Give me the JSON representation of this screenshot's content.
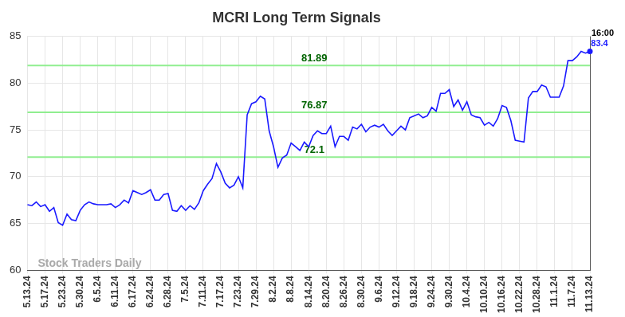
{
  "chart_data": {
    "type": "line",
    "title": "MCRI Long Term Signals",
    "categories": [
      "5.13.24",
      null,
      null,
      null,
      "5.17.24",
      null,
      null,
      null,
      "5.23.24",
      null,
      null,
      null,
      "5.30.24",
      null,
      null,
      null,
      "6.5.24",
      null,
      null,
      null,
      "6.11.24",
      null,
      null,
      null,
      "6.17.24",
      null,
      null,
      null,
      "6.24.24",
      null,
      null,
      null,
      "6.28.24",
      null,
      null,
      null,
      "7.5.24",
      null,
      null,
      null,
      "7.11.24",
      null,
      null,
      null,
      "7.17.24",
      null,
      null,
      null,
      "7.23.24",
      null,
      null,
      null,
      "7.29.24",
      null,
      null,
      null,
      "8.2.24",
      null,
      null,
      null,
      "8.8.24",
      null,
      null,
      null,
      "8.14.24",
      null,
      null,
      null,
      "8.20.24",
      null,
      null,
      null,
      "8.26.24",
      null,
      null,
      null,
      "8.30.24",
      null,
      null,
      null,
      "9.6.24",
      null,
      null,
      null,
      "9.12.24",
      null,
      null,
      null,
      "9.18.24",
      null,
      null,
      null,
      "9.24.24",
      null,
      null,
      null,
      "9.30.24",
      null,
      null,
      null,
      "10.4.24",
      null,
      null,
      null,
      "10.10.24",
      null,
      null,
      null,
      "10.16.24",
      null,
      null,
      null,
      "10.22.24",
      null,
      null,
      null,
      "10.28.24",
      null,
      null,
      null,
      "11.1.24",
      null,
      null,
      null,
      "11.7.24",
      null,
      null,
      null,
      "11.13.24"
    ],
    "values": [
      67.0,
      66.9,
      67.3,
      66.8,
      67.0,
      66.3,
      66.7,
      65.1,
      64.8,
      66.0,
      65.4,
      65.3,
      66.4,
      67.0,
      67.3,
      67.1,
      67.0,
      67.0,
      67.0,
      67.1,
      66.7,
      67.0,
      67.5,
      67.2,
      68.5,
      68.3,
      68.1,
      68.3,
      68.6,
      67.5,
      67.5,
      68.1,
      68.2,
      66.4,
      66.3,
      66.9,
      66.4,
      66.9,
      66.5,
      67.2,
      68.5,
      69.2,
      69.8,
      71.4,
      70.5,
      69.3,
      68.8,
      69.1,
      70.0,
      68.8,
      76.6,
      77.8,
      78.0,
      78.6,
      78.3,
      74.9,
      73.2,
      71.0,
      72.0,
      72.3,
      73.6,
      73.2,
      72.8,
      73.7,
      73.2,
      74.4,
      74.9,
      74.6,
      74.6,
      75.4,
      73.2,
      74.3,
      74.3,
      73.9,
      75.3,
      75.1,
      75.6,
      74.8,
      75.3,
      75.5,
      75.3,
      75.6,
      74.9,
      74.4,
      74.9,
      75.4,
      75.0,
      76.3,
      76.5,
      76.7,
      76.3,
      76.5,
      77.4,
      77.0,
      78.9,
      78.9,
      79.3,
      77.5,
      78.2,
      77.1,
      78.0,
      76.6,
      76.4,
      76.3,
      75.5,
      75.8,
      75.4,
      76.2,
      77.6,
      77.4,
      76.0,
      73.9,
      73.8,
      73.7,
      78.4,
      79.1,
      79.1,
      79.8,
      79.6,
      78.5,
      78.5,
      78.5,
      79.7,
      82.4,
      82.4,
      82.8,
      83.4,
      83.2,
      83.4
    ],
    "color": "#1a1aff",
    "ylim": [
      60,
      85
    ],
    "yticks": [
      60,
      65,
      70,
      75,
      80,
      85
    ],
    "grid": true,
    "reference_lines": [
      81.89,
      76.87,
      72.1
    ],
    "last_label": {
      "time": "16:00",
      "value": 83.4
    },
    "watermark": "Stock Traders Daily"
  }
}
